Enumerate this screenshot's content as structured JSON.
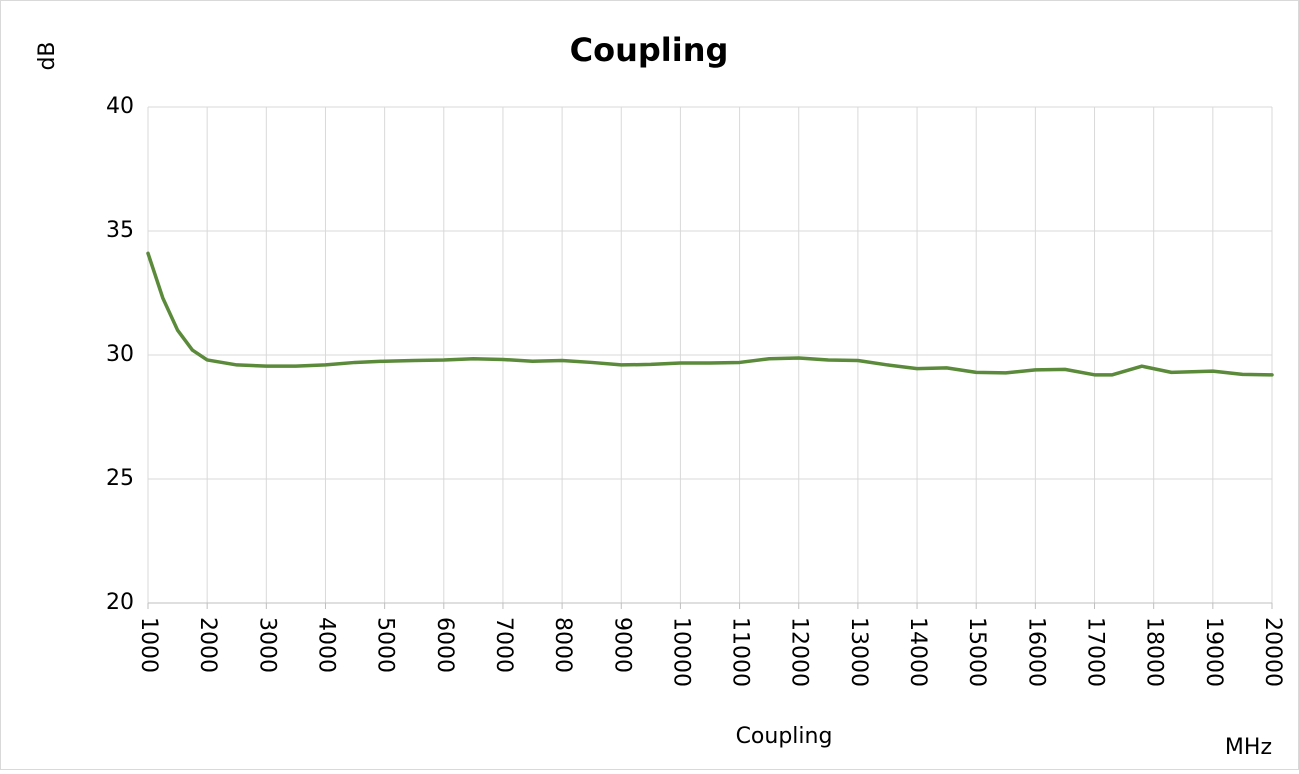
{
  "chart_data": {
    "type": "line",
    "title": "Coupling",
    "y_label": "dB",
    "x_label": "MHz",
    "legend": "bottom",
    "grid": true,
    "x": [
      1000,
      1250,
      1500,
      1750,
      2000,
      2500,
      3000,
      3500,
      4000,
      4500,
      5000,
      5500,
      6000,
      6500,
      7000,
      7500,
      8000,
      8500,
      9000,
      9500,
      10000,
      10500,
      11000,
      11500,
      12000,
      12500,
      13000,
      13500,
      14000,
      14500,
      15000,
      15500,
      16000,
      16500,
      17000,
      17300,
      17800,
      18300,
      19000,
      19500,
      20000
    ],
    "series": [
      {
        "name": "Coupling",
        "color": "#5a8a3a",
        "values": [
          34.1,
          32.3,
          31.0,
          30.2,
          29.8,
          29.6,
          29.55,
          29.55,
          29.6,
          29.7,
          29.75,
          29.78,
          29.8,
          29.85,
          29.82,
          29.75,
          29.78,
          29.7,
          29.6,
          29.62,
          29.68,
          29.68,
          29.7,
          29.85,
          29.88,
          29.8,
          29.78,
          29.6,
          29.45,
          29.48,
          29.3,
          29.28,
          29.4,
          29.42,
          29.2,
          29.2,
          29.55,
          29.3,
          29.35,
          29.22,
          29.2
        ]
      }
    ],
    "xlim": [
      1000,
      20000
    ],
    "xticks": [
      1000,
      2000,
      3000,
      4000,
      5000,
      6000,
      7000,
      8000,
      9000,
      10000,
      11000,
      12000,
      13000,
      14000,
      15000,
      16000,
      17000,
      18000,
      19000,
      20000
    ],
    "ylim": [
      20,
      40
    ],
    "yticks": [
      20,
      25,
      30,
      35,
      40
    ]
  }
}
